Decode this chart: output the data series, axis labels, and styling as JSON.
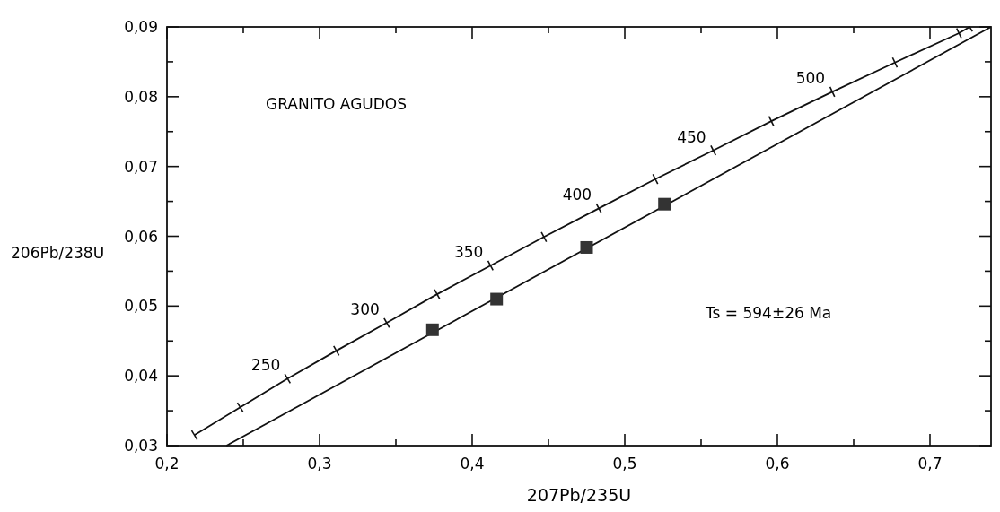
{
  "chart_data": {
    "type": "line",
    "xlabel": "207Pb/235U",
    "ylabel": "206Pb/238U",
    "xlim": [
      0.2,
      0.74
    ],
    "ylim": [
      0.03,
      0.09
    ],
    "xticks": [
      {
        "value": 0.2,
        "label": "0,2"
      },
      {
        "value": 0.25,
        "label": null
      },
      {
        "value": 0.3,
        "label": "0,3"
      },
      {
        "value": 0.35,
        "label": null
      },
      {
        "value": 0.4,
        "label": "0,4"
      },
      {
        "value": 0.45,
        "label": null
      },
      {
        "value": 0.5,
        "label": "0,5"
      },
      {
        "value": 0.55,
        "label": null
      },
      {
        "value": 0.6,
        "label": "0,6"
      },
      {
        "value": 0.65,
        "label": null
      },
      {
        "value": 0.7,
        "label": "0,7"
      }
    ],
    "yticks": [
      {
        "value": 0.03,
        "label": "0,03"
      },
      {
        "value": 0.035,
        "label": null
      },
      {
        "value": 0.04,
        "label": "0,04"
      },
      {
        "value": 0.045,
        "label": null
      },
      {
        "value": 0.05,
        "label": "0,05"
      },
      {
        "value": 0.055,
        "label": null
      },
      {
        "value": 0.06,
        "label": "0,06"
      },
      {
        "value": 0.065,
        "label": null
      },
      {
        "value": 0.07,
        "label": "0,07"
      },
      {
        "value": 0.075,
        "label": null
      },
      {
        "value": 0.08,
        "label": "0,08"
      },
      {
        "value": 0.085,
        "label": null
      },
      {
        "value": 0.09,
        "label": "0,09"
      }
    ],
    "grid": false,
    "series": [
      {
        "color": "#111111",
        "marker": "cross",
        "x": [
          0.218,
          0.248,
          0.279,
          0.311,
          0.344,
          0.377,
          0.412,
          0.447,
          0.483,
          0.52,
          0.558,
          0.596,
          0.636,
          0.677,
          0.719,
          0.726
        ],
        "values": [
          0.0315,
          0.0355,
          0.0396,
          0.0436,
          0.0476,
          0.0517,
          0.0558,
          0.0599,
          0.064,
          0.0682,
          0.0723,
          0.0765,
          0.0807,
          0.0849,
          0.0891,
          0.09
        ]
      },
      {
        "color": "#111111",
        "marker": "none",
        "x": [
          0.239,
          0.74
        ],
        "values": [
          0.03,
          0.09
        ]
      },
      {
        "type": "scatter",
        "color": "#333333",
        "marker": "square",
        "x": [
          0.374,
          0.416,
          0.475,
          0.526
        ],
        "values": [
          0.0466,
          0.051,
          0.0584,
          0.0646
        ]
      }
    ],
    "annotations": [
      "GRANITO AGUDOS",
      "Ts = 594±26 Ma",
      {
        "text": "250",
        "x": 0.279,
        "y": 0.0396
      },
      {
        "text": "300",
        "x": 0.344,
        "y": 0.0476
      },
      {
        "text": "350",
        "x": 0.412,
        "y": 0.0558
      },
      {
        "text": "400",
        "x": 0.483,
        "y": 0.064
      },
      {
        "text": "450",
        "x": 0.558,
        "y": 0.0723
      },
      {
        "text": "500",
        "x": 0.636,
        "y": 0.0807
      }
    ]
  }
}
